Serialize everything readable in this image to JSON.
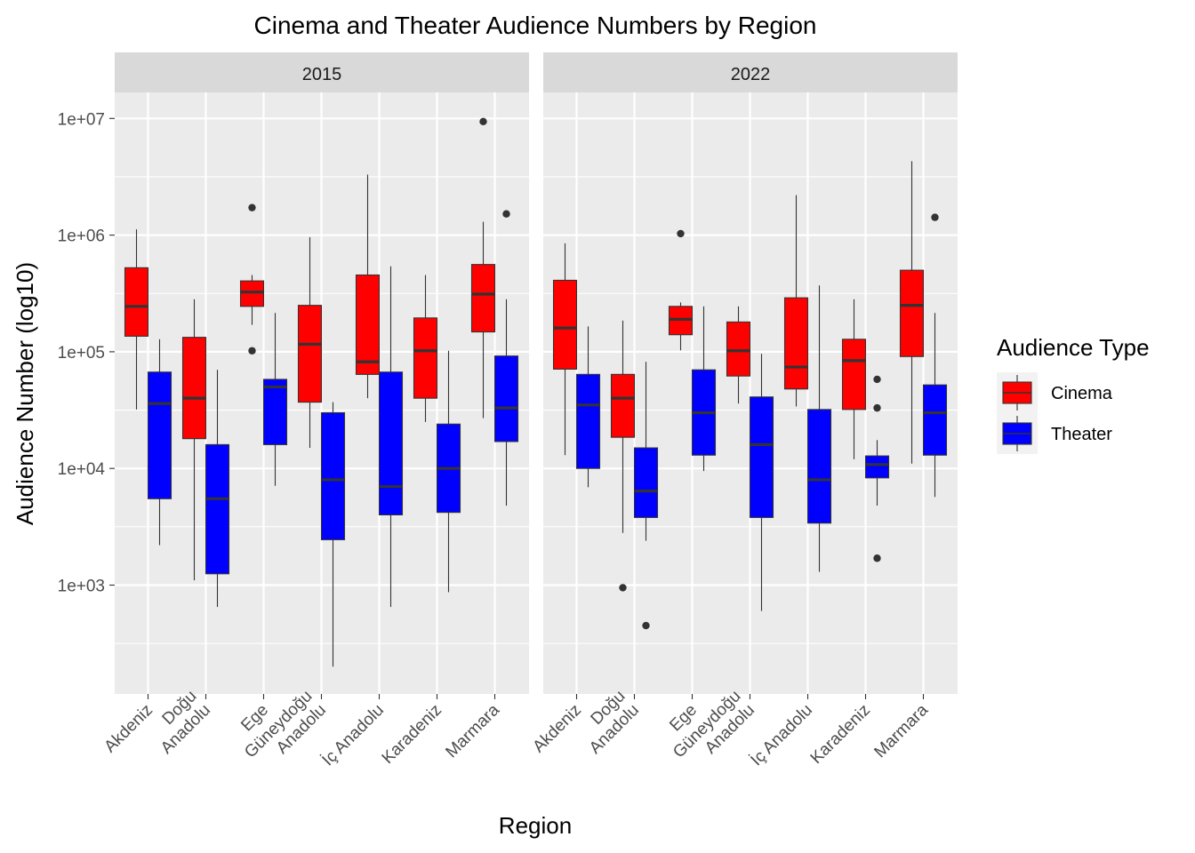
{
  "chart_data": {
    "type": "box",
    "title": "Cinema and Theater Audience Numbers by Region",
    "xlabel": "Region",
    "ylabel": "Audience Number (log10)",
    "y_scale": "log10",
    "ylim": [
      140,
      15000000
    ],
    "y_ticks": [
      1000,
      10000,
      100000,
      1000000,
      10000000
    ],
    "y_tick_labels": [
      "1e+03",
      "1e+04",
      "1e+05",
      "1e+06",
      "1e+07"
    ],
    "categories": [
      "Akdeniz",
      "Doğu Anadolu",
      "Ege",
      "Güneydoğu Anadolu",
      "İç Anadolu",
      "Karadeniz",
      "Marmara"
    ],
    "category_lines": [
      [
        "Akdeniz"
      ],
      [
        "Doğu",
        "Anadolu"
      ],
      [
        "Ege"
      ],
      [
        "Güneydoğu",
        "Anadolu"
      ],
      [
        "İç Anadolu"
      ],
      [
        "Karadeniz"
      ],
      [
        "Marmara"
      ]
    ],
    "legend": {
      "title": "Audience Type",
      "position": "right",
      "entries": [
        {
          "name": "Cinema",
          "color": "#FF0000"
        },
        {
          "name": "Theater",
          "color": "#0000FF"
        }
      ]
    },
    "colors": {
      "panel": "#EBEBEB",
      "grid": "#FFFFFF",
      "strip": "#D9D9D9",
      "outline": "#333333"
    },
    "panels": [
      {
        "label": "2015",
        "series": [
          {
            "name": "Cinema",
            "boxes": [
              {
                "q1": 136000,
                "median": 245000,
                "q3": 525000,
                "lo": 32000,
                "hi": 1120000,
                "outliers": []
              },
              {
                "q1": 18000,
                "median": 40000,
                "q3": 133000,
                "lo": 1100,
                "hi": 282000,
                "outliers": []
              },
              {
                "q1": 245000,
                "median": 325000,
                "q3": 405000,
                "lo": 170000,
                "hi": 455000,
                "outliers": [
                  1720000,
                  102000
                ]
              },
              {
                "q1": 37000,
                "median": 116000,
                "q3": 250000,
                "lo": 15000,
                "hi": 960000,
                "outliers": []
              },
              {
                "q1": 64000,
                "median": 82000,
                "q3": 455000,
                "lo": 40000,
                "hi": 3300000,
                "outliers": []
              },
              {
                "q1": 40000,
                "median": 102000,
                "q3": 195000,
                "lo": 25000,
                "hi": 455000,
                "outliers": []
              },
              {
                "q1": 148000,
                "median": 312000,
                "q3": 560000,
                "lo": 27000,
                "hi": 1300000,
                "outliers": [
                  9400000
                ]
              }
            ]
          },
          {
            "name": "Theater",
            "boxes": [
              {
                "q1": 5500,
                "median": 36000,
                "q3": 67000,
                "lo": 2200,
                "hi": 128000,
                "outliers": []
              },
              {
                "q1": 1250,
                "median": 5500,
                "q3": 16000,
                "lo": 650,
                "hi": 70000,
                "outliers": []
              },
              {
                "q1": 16000,
                "median": 50000,
                "q3": 58000,
                "lo": 7100,
                "hi": 215000,
                "outliers": []
              },
              {
                "q1": 2450,
                "median": 8000,
                "q3": 30000,
                "lo": 200,
                "hi": 37000,
                "outliers": []
              },
              {
                "q1": 4000,
                "median": 7000,
                "q3": 67000,
                "lo": 650,
                "hi": 540000,
                "outliers": []
              },
              {
                "q1": 4200,
                "median": 10000,
                "q3": 24000,
                "lo": 870,
                "hi": 102000,
                "outliers": []
              },
              {
                "q1": 17000,
                "median": 33000,
                "q3": 92000,
                "lo": 4800,
                "hi": 282000,
                "outliers": [
                  1520000
                ]
              }
            ]
          }
        ]
      },
      {
        "label": "2022",
        "series": [
          {
            "name": "Cinema",
            "boxes": [
              {
                "q1": 71000,
                "median": 160000,
                "q3": 410000,
                "lo": 13000,
                "hi": 850000,
                "outliers": []
              },
              {
                "q1": 18500,
                "median": 40000,
                "q3": 64000,
                "lo": 2800,
                "hi": 185000,
                "outliers": [
                  950
                ]
              },
              {
                "q1": 140000,
                "median": 190000,
                "q3": 245000,
                "lo": 103000,
                "hi": 265000,
                "outliers": [
                  1030000
                ]
              },
              {
                "q1": 62000,
                "median": 102000,
                "q3": 180000,
                "lo": 36000,
                "hi": 245000,
                "outliers": []
              },
              {
                "q1": 48000,
                "median": 74000,
                "q3": 290000,
                "lo": 34000,
                "hi": 2200000,
                "outliers": []
              },
              {
                "q1": 32000,
                "median": 84000,
                "q3": 128000,
                "lo": 12000,
                "hi": 282000,
                "outliers": []
              },
              {
                "q1": 91000,
                "median": 250000,
                "q3": 500000,
                "lo": 11000,
                "hi": 4300000,
                "outliers": []
              }
            ]
          },
          {
            "name": "Theater",
            "boxes": [
              {
                "q1": 10000,
                "median": 35000,
                "q3": 64000,
                "lo": 6900,
                "hi": 165000,
                "outliers": []
              },
              {
                "q1": 3800,
                "median": 6400,
                "q3": 15000,
                "lo": 2400,
                "hi": 82000,
                "outliers": [
                  450
                ]
              },
              {
                "q1": 13000,
                "median": 30000,
                "q3": 70000,
                "lo": 9500,
                "hi": 245000,
                "outliers": []
              },
              {
                "q1": 3800,
                "median": 16000,
                "q3": 41000,
                "lo": 600,
                "hi": 96000,
                "outliers": []
              },
              {
                "q1": 3400,
                "median": 8000,
                "q3": 32000,
                "lo": 1300,
                "hi": 370000,
                "outliers": []
              },
              {
                "q1": 8300,
                "median": 10800,
                "q3": 12800,
                "lo": 4800,
                "hi": 17500,
                "outliers": [
                  58000,
                  33000,
                  1700
                ]
              },
              {
                "q1": 13000,
                "median": 30000,
                "q3": 52000,
                "lo": 5700,
                "hi": 215000,
                "outliers": [
                  1420000
                ]
              }
            ]
          }
        ]
      }
    ]
  }
}
